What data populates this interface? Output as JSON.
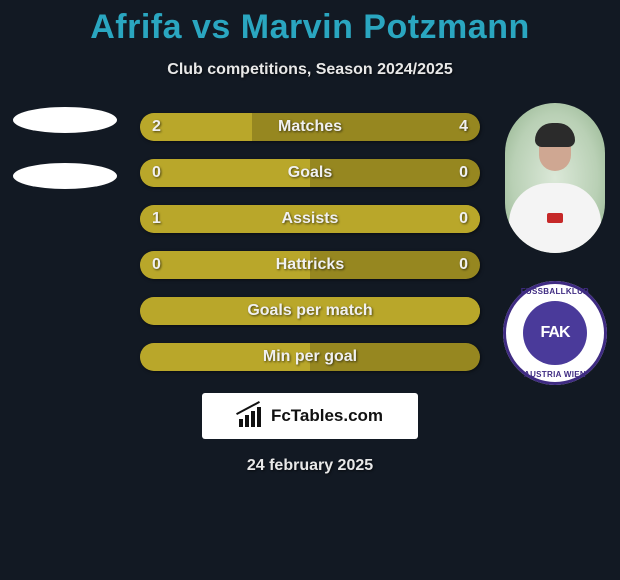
{
  "header": {
    "title": "Afrifa vs Marvin Potzmann",
    "subtitle": "Club competitions, Season 2024/2025",
    "title_color": "#2aa6c0"
  },
  "players": {
    "right_club": {
      "initials": "FAK",
      "ring_top": "FUSSBALLKLUB",
      "ring_bottom": "AUSTRIA WIEN",
      "ring_color": "#3f2b82",
      "inner_color": "#4a3a9a"
    }
  },
  "stats": {
    "bar_bg": "#968720",
    "bar_fill": "#b9a72a",
    "rows": [
      {
        "label": "Matches",
        "left": "2",
        "right": "4",
        "left_pct": 33
      },
      {
        "label": "Goals",
        "left": "0",
        "right": "0",
        "left_pct": 50
      },
      {
        "label": "Assists",
        "left": "1",
        "right": "0",
        "left_pct": 100
      },
      {
        "label": "Hattricks",
        "left": "0",
        "right": "0",
        "left_pct": 50
      },
      {
        "label": "Goals per match",
        "left": "",
        "right": "",
        "left_pct": 100
      },
      {
        "label": "Min per goal",
        "left": "",
        "right": "",
        "left_pct": 50
      }
    ]
  },
  "watermark": {
    "text": "FcTables.com"
  },
  "footer": {
    "date": "24 february 2025"
  }
}
